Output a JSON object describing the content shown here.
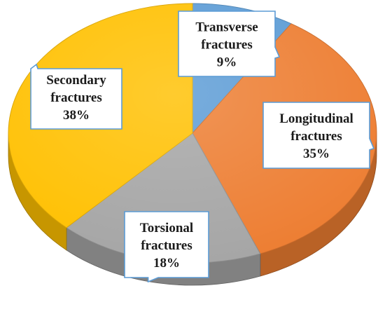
{
  "chart_data": {
    "type": "pie",
    "style": "3d",
    "title": "",
    "slices": [
      {
        "label": "Transverse fractures",
        "value": 9,
        "value_label": "9%",
        "color": "#5b9bd5"
      },
      {
        "label": "Longitudinal fractures",
        "value": 35,
        "value_label": "35%",
        "color": "#ed7d31"
      },
      {
        "label": "Torsional fractures",
        "value": 18,
        "value_label": "18%",
        "color": "#a5a5a5"
      },
      {
        "label": "Secondary fractures",
        "value": 38,
        "value_label": "38%",
        "color": "#ffc000"
      }
    ],
    "start_angle_deg": -90,
    "direction": "clockwise",
    "legend": "none"
  }
}
